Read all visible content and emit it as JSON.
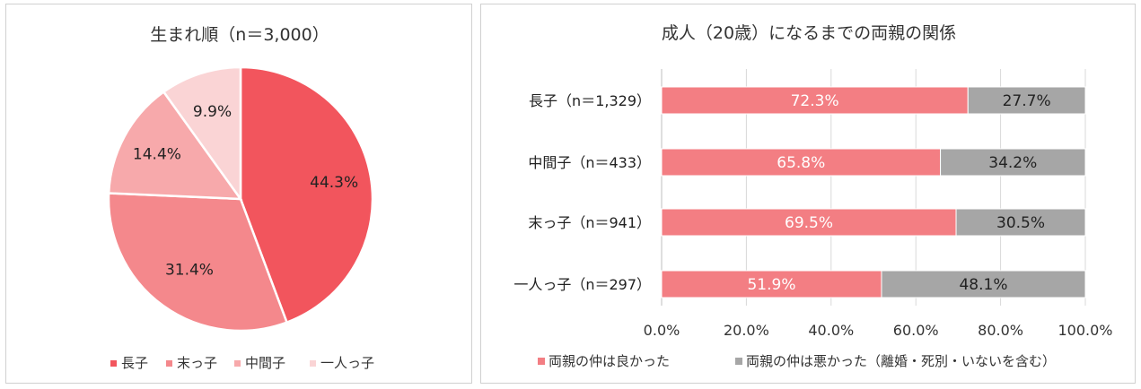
{
  "chart_data": [
    {
      "type": "pie",
      "title": "生まれ順（n＝3,000）",
      "categories": [
        "長子",
        "末っ子",
        "中間子",
        "一人っ子"
      ],
      "values": [
        44.3,
        31.4,
        14.4,
        9.9
      ],
      "value_labels": [
        "44.3%",
        "31.4%",
        "14.4%",
        "9.9%"
      ],
      "colors": [
        "#f2555d",
        "#f4888c",
        "#f7a9ab",
        "#fad4d5"
      ],
      "legend": "bottom"
    },
    {
      "type": "bar",
      "orientation": "horizontal",
      "stacked": true,
      "title": "成人（20歳）になるまでの両親の関係",
      "categories": [
        "長子（n＝1,329）",
        "中間子（n＝433）",
        "末っ子（n＝941）",
        "一人っ子（n＝297）"
      ],
      "series": [
        {
          "name": "両親の仲は良かった",
          "values": [
            72.3,
            65.8,
            69.5,
            51.9
          ],
          "labels": [
            "72.3%",
            "65.8%",
            "69.5%",
            "51.9%"
          ],
          "color": "#f37e83"
        },
        {
          "name": "両親の仲は悪かった（離婚・死別・いないを含む）",
          "values": [
            27.7,
            34.2,
            30.5,
            48.1
          ],
          "labels": [
            "27.7%",
            "34.2%",
            "30.5%",
            "48.1%"
          ],
          "color": "#a6a6a6"
        }
      ],
      "xlim": [
        0,
        100
      ],
      "xticks": [
        "0.0%",
        "20.0%",
        "40.0%",
        "60.0%",
        "80.0%",
        "100.0%"
      ],
      "legend": "bottom"
    }
  ]
}
